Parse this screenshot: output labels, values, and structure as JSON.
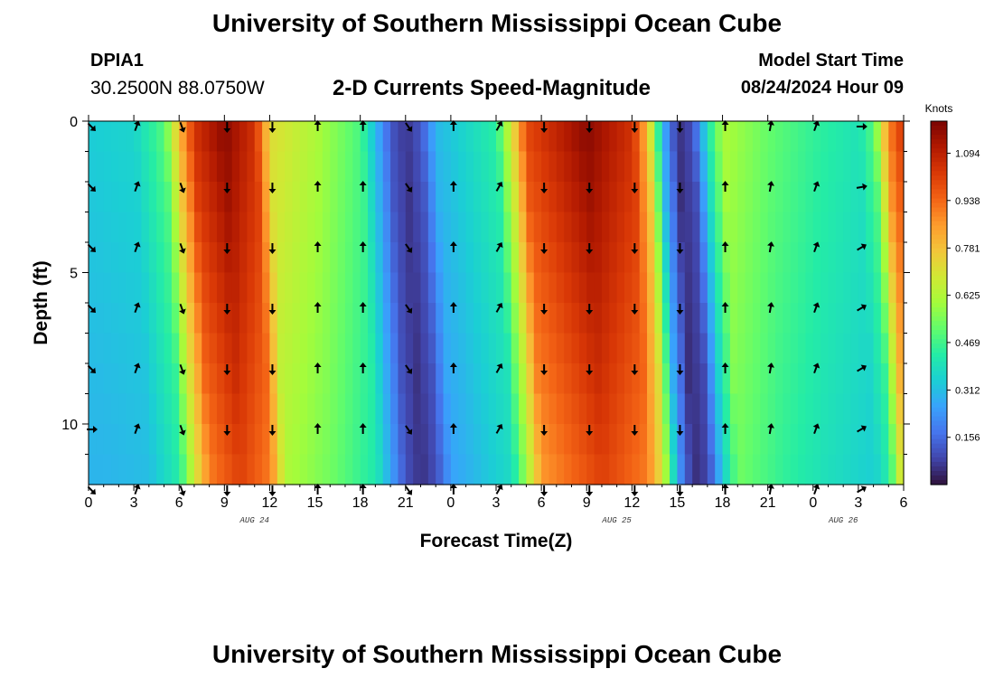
{
  "header": {
    "title": "University of Southern Mississippi Ocean Cube",
    "station": "DPIA1",
    "coordinates": "30.2500N  88.0750W",
    "subtitle": "2-D Currents Speed-Magnitude",
    "model_start_label": "Model Start Time",
    "model_start_value": "08/24/2024 Hour 09"
  },
  "footer": {
    "title": "University of Southern Mississippi Ocean Cube"
  },
  "colors": {
    "arrow": "#000000",
    "axis": "#000000",
    "colormap": [
      "#30123b",
      "#4145ab",
      "#4675ed",
      "#39a2fc",
      "#1bcfd4",
      "#24eca6",
      "#61fc6c",
      "#a4fc3b",
      "#d1e834",
      "#f3c63a",
      "#fe9b2d",
      "#f36315",
      "#d93806",
      "#b11901",
      "#7a0402"
    ]
  },
  "chart_data": {
    "type": "heatmap",
    "title": "2-D Currents Speed-Magnitude",
    "xlabel": "Forecast Time(Z)",
    "ylabel": "Depth (ft)",
    "x_ticks": [
      "0",
      "3",
      "6",
      "9",
      "12",
      "15",
      "18",
      "21",
      "0",
      "3",
      "6",
      "9",
      "12",
      "15",
      "18",
      "21",
      "0",
      "3",
      "6"
    ],
    "x_range_hours": [
      0,
      54
    ],
    "date_labels": [
      {
        "text": "AUG 24",
        "hour": 11
      },
      {
        "text": "AUG 25",
        "hour": 35
      },
      {
        "text": "AUG 26",
        "hour": 50
      }
    ],
    "y_ticks": [
      "0",
      "5",
      "10"
    ],
    "y_range_ft": [
      0,
      12
    ],
    "colorbar": {
      "label": "Knots",
      "ticks": [
        "1.094",
        "0.938",
        "0.781",
        "0.625",
        "0.469",
        "0.312",
        "0.156"
      ],
      "tick_values": [
        1.094,
        0.938,
        0.781,
        0.625,
        0.469,
        0.312,
        0.156
      ],
      "range": [
        0.0,
        1.2
      ]
    },
    "speed_profile_surface": [
      {
        "hour": 0,
        "knots": 0.34
      },
      {
        "hour": 3,
        "knots": 0.36
      },
      {
        "hour": 5,
        "knots": 0.5
      },
      {
        "hour": 6,
        "knots": 0.8
      },
      {
        "hour": 7,
        "knots": 1.05
      },
      {
        "hour": 9,
        "knots": 1.18
      },
      {
        "hour": 11,
        "knots": 1.05
      },
      {
        "hour": 12,
        "knots": 0.72
      },
      {
        "hour": 15,
        "knots": 0.62
      },
      {
        "hour": 18,
        "knots": 0.48
      },
      {
        "hour": 19,
        "knots": 0.3
      },
      {
        "hour": 20,
        "knots": 0.12
      },
      {
        "hour": 21,
        "knots": 0.06
      },
      {
        "hour": 22,
        "knots": 0.12
      },
      {
        "hour": 23,
        "knots": 0.3
      },
      {
        "hour": 24,
        "knots": 0.33
      },
      {
        "hour": 27,
        "knots": 0.44
      },
      {
        "hour": 28,
        "knots": 0.7
      },
      {
        "hour": 29,
        "knots": 1.0
      },
      {
        "hour": 33,
        "knots": 1.18
      },
      {
        "hour": 36,
        "knots": 1.05
      },
      {
        "hour": 37,
        "knots": 0.8
      },
      {
        "hour": 38,
        "knots": 0.3
      },
      {
        "hour": 39,
        "knots": 0.05
      },
      {
        "hour": 40,
        "knots": 0.1
      },
      {
        "hour": 41,
        "knots": 0.4
      },
      {
        "hour": 42,
        "knots": 0.62
      },
      {
        "hour": 45,
        "knots": 0.52
      },
      {
        "hour": 48,
        "knots": 0.45
      },
      {
        "hour": 51,
        "knots": 0.4
      },
      {
        "hour": 52,
        "knots": 0.5
      },
      {
        "hour": 53,
        "knots": 0.9
      },
      {
        "hour": 54,
        "knots": 1.05
      }
    ],
    "arrow_hours": [
      0,
      3,
      6,
      9,
      12,
      15,
      18,
      21,
      24,
      27,
      30,
      33,
      36,
      39,
      42,
      45,
      48,
      51
    ],
    "arrow_depths_ft": [
      0,
      2,
      4,
      6,
      8,
      10,
      12
    ],
    "arrow_directions_deg": [
      135,
      20,
      160,
      180,
      180,
      0,
      0,
      145,
      0,
      30,
      180,
      180,
      180,
      180,
      0,
      10,
      20,
      60
    ],
    "arrow_direction_overrides": [
      {
        "hour": 0,
        "depth": 10,
        "deg": 90
      },
      {
        "hour": 51,
        "depth": 0,
        "deg": 90
      },
      {
        "hour": 51,
        "depth": 2,
        "deg": 80
      }
    ]
  }
}
